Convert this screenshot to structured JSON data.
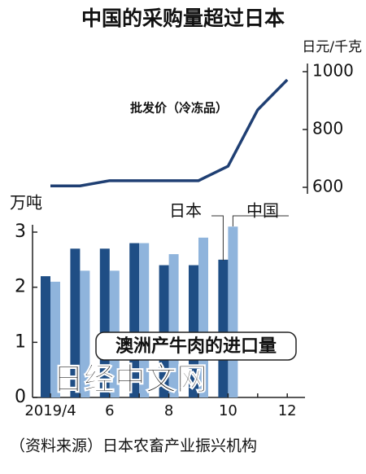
{
  "title": "中国的采购量超过日本",
  "chart_data": [
    {
      "type": "line",
      "y_label": "日元/千克",
      "ylim": [
        600,
        1000
      ],
      "yticks": [
        600,
        800,
        1000
      ],
      "series": [
        {
          "name": "批发价（冷冻品）",
          "color": "#1f3f73",
          "values": [
            605,
            605,
            623,
            623,
            623,
            623,
            673,
            868,
            972
          ]
        }
      ]
    },
    {
      "type": "bar",
      "y_label": "万吨",
      "categories": [
        "2019/4",
        null,
        "6",
        null,
        "8",
        null,
        "10",
        null,
        "12"
      ],
      "ylim": [
        0,
        3
      ],
      "yticks": [
        0,
        1,
        2,
        3
      ],
      "series": [
        {
          "name": "日本",
          "color": "#1f4e85",
          "values": [
            2.2,
            2.7,
            2.7,
            2.8,
            2.4,
            2.4,
            2.5,
            null,
            null
          ]
        },
        {
          "name": "中国",
          "color": "#8fb4dc",
          "values": [
            2.1,
            2.3,
            2.3,
            2.8,
            2.6,
            2.9,
            3.1,
            null,
            null
          ]
        }
      ],
      "annotation": "澳洲产牛肉的进口量",
      "source": "（资料来源）日本农畜产业振兴机构",
      "watermark": "日经中文网"
    }
  ]
}
